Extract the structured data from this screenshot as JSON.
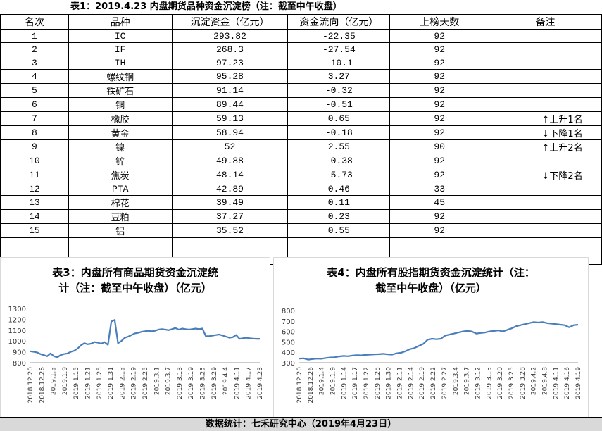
{
  "table": {
    "title": "表1：2019.4.23 内盘期货品种资金沉淀榜（注：截至中午收盘）",
    "headers": [
      "名次",
      "品种",
      "沉淀资金（亿元）",
      "资金流向（亿元）",
      "上榜天数",
      "备注"
    ],
    "rows": [
      {
        "rank": "1",
        "name": "IC",
        "capital": "293.82",
        "flow": "-22.35",
        "days": "92",
        "note": ""
      },
      {
        "rank": "2",
        "name": "IF",
        "capital": "268.3",
        "flow": "-27.54",
        "days": "92",
        "note": ""
      },
      {
        "rank": "3",
        "name": "IH",
        "capital": "97.23",
        "flow": "-10.1",
        "days": "92",
        "note": ""
      },
      {
        "rank": "4",
        "name": "螺纹钢",
        "capital": "95.28",
        "flow": "3.27",
        "days": "92",
        "note": ""
      },
      {
        "rank": "5",
        "name": "铁矿石",
        "capital": "91.14",
        "flow": "-0.32",
        "days": "92",
        "note": ""
      },
      {
        "rank": "6",
        "name": "铜",
        "capital": "89.44",
        "flow": "-0.51",
        "days": "92",
        "note": ""
      },
      {
        "rank": "7",
        "name": "橡胶",
        "capital": "59.13",
        "flow": "0.65",
        "days": "92",
        "note": "↑上升1名"
      },
      {
        "rank": "8",
        "name": "黄金",
        "capital": "58.94",
        "flow": "-0.18",
        "days": "92",
        "note": "↓下降1名"
      },
      {
        "rank": "9",
        "name": "镍",
        "capital": "52",
        "flow": "2.55",
        "days": "90",
        "note": "↑上升2名"
      },
      {
        "rank": "10",
        "name": "锌",
        "capital": "49.88",
        "flow": "-0.38",
        "days": "92",
        "note": ""
      },
      {
        "rank": "11",
        "name": "焦炭",
        "capital": "48.14",
        "flow": "-5.73",
        "days": "92",
        "note": "↓下降2名"
      },
      {
        "rank": "12",
        "name": "PTA",
        "capital": "42.89",
        "flow": "0.46",
        "days": "33",
        "note": ""
      },
      {
        "rank": "13",
        "name": "棉花",
        "capital": "39.49",
        "flow": "0.11",
        "days": "45",
        "note": ""
      },
      {
        "rank": "14",
        "name": "豆粕",
        "capital": "37.27",
        "flow": "0.23",
        "days": "92",
        "note": ""
      },
      {
        "rank": "15",
        "name": "铝",
        "capital": "35.52",
        "flow": "0.55",
        "days": "92",
        "note": ""
      }
    ]
  },
  "footer": "数据统计：七禾研究中心（2019年4月23日）",
  "chart_data": [
    {
      "type": "line",
      "title": "表3：内盘所有商品期货资金沉淀统计（注：截至中午收盘）（亿元）",
      "title_lines": [
        "表3：内盘所有商品期货资金沉淀统",
        "计（注：截至中午收盘）（亿元）"
      ],
      "ylim": [
        800,
        1300
      ],
      "yticks": [
        800,
        900,
        1000,
        1100,
        1200,
        1300
      ],
      "x_tick_labels": [
        "2018.12.20",
        "2018.12.26",
        "2019.1.3",
        "2019.1.9",
        "2019.1.15",
        "2019.1.21",
        "2019.1.25",
        "2019.1.31",
        "2019.2.13",
        "2019.2.19",
        "2019.2.25",
        "2019.3.1",
        "2019.3.7",
        "2019.3.13",
        "2019.3.19",
        "2019.3.25",
        "2019.3.29",
        "2019.4.4",
        "2019.4.11",
        "2019.4.17",
        "2019.4.23"
      ],
      "line_color": "#4a7ebb",
      "series": [
        {
          "values": [
            905,
            900,
            895,
            880,
            870,
            860,
            885,
            860,
            850,
            870,
            880,
            885,
            900,
            910,
            930,
            960,
            980,
            970,
            975,
            990,
            985,
            975,
            990,
            965,
            1180,
            1195,
            980,
            1000,
            1030,
            1040,
            1055,
            1070,
            1075,
            1085,
            1090,
            1095,
            1090,
            1095,
            1105,
            1110,
            1105,
            1100,
            1110,
            1120,
            1105,
            1115,
            1110,
            1105,
            1110,
            1115,
            1110,
            1115,
            1045,
            1045,
            1050,
            1055,
            1060,
            1050,
            1040,
            1030,
            1035,
            1055,
            1020,
            1025,
            1030,
            1025,
            1022,
            1020,
            1020
          ]
        }
      ]
    },
    {
      "type": "line",
      "title": "表4：内盘所有股指期货资金沉淀统计（注：截至中午收盘）（亿元）",
      "title_lines": [
        "表4：内盘所有股指期货资金沉淀统计（注：",
        "截至中午收盘）（亿元）"
      ],
      "ylim": [
        300,
        800
      ],
      "yticks": [
        300,
        400,
        500,
        600,
        700,
        800
      ],
      "x_tick_labels": [
        "2018.12.20",
        "2018.12.26",
        "2019.1.4",
        "2019.1.9",
        "2019.1.14",
        "2019.1.17",
        "2019.1.22",
        "2019.1.25",
        "2019.1.30",
        "2019.2.11",
        "2019.2.14",
        "2019.2.19",
        "2019.2.22",
        "2019.2.27",
        "2019.3.4",
        "2019.3.7",
        "2019.3.12",
        "2019.3.15",
        "2019.3.20",
        "2019.3.25",
        "2019.3.28",
        "2019.4.2",
        "2019.4.8",
        "2019.4.11",
        "2019.4.16",
        "2019.4.19"
      ],
      "line_color": "#4a7ebb",
      "series": [
        {
          "values": [
            340,
            342,
            330,
            335,
            340,
            338,
            345,
            350,
            352,
            360,
            365,
            362,
            368,
            372,
            370,
            375,
            378,
            380,
            382,
            385,
            380,
            378,
            390,
            395,
            410,
            430,
            440,
            460,
            480,
            520,
            530,
            525,
            530,
            560,
            570,
            580,
            590,
            600,
            605,
            600,
            580,
            585,
            590,
            600,
            605,
            610,
            600,
            615,
            630,
            650,
            660,
            670,
            680,
            690,
            685,
            690,
            680,
            675,
            670,
            665,
            660,
            640,
            660,
            665
          ]
        }
      ]
    }
  ]
}
